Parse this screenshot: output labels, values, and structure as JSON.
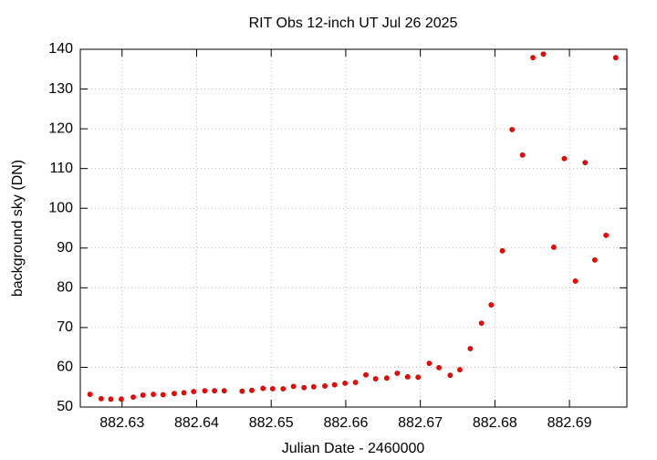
{
  "chart_data": {
    "type": "scatter",
    "title": "RIT Obs 12-inch UT Jul 26 2025",
    "x_label": "Julian Date - 2460000",
    "y_label": "background sky (DN)",
    "color": "#ff0000",
    "grid": true,
    "xlim": [
      882.6244,
      882.6977
    ],
    "ylim": [
      50,
      140
    ],
    "xticks": [
      882.63,
      882.64,
      882.65,
      882.66,
      882.67,
      882.68,
      882.69
    ],
    "yticks": [
      50,
      60,
      70,
      80,
      90,
      100,
      110,
      120,
      130,
      140
    ],
    "x": [
      882.6257,
      882.6272,
      882.6285,
      882.6299,
      882.6315,
      882.6328,
      882.6342,
      882.6355,
      882.637,
      882.6383,
      882.6396,
      882.6411,
      882.6424,
      882.6437,
      882.6461,
      882.6474,
      882.6489,
      882.6502,
      882.6516,
      882.653,
      882.6544,
      882.6557,
      882.6572,
      882.6585,
      882.6599,
      882.6613,
      882.6627,
      882.664,
      882.6655,
      882.6669,
      882.6683,
      882.6697,
      882.6712,
      882.6725,
      882.674,
      882.6753,
      882.6767,
      882.6782,
      882.6795,
      882.681,
      882.6823,
      882.6837,
      882.6851,
      882.6865,
      882.6879,
      882.6893,
      882.6908,
      882.6921,
      882.6934,
      882.6949,
      882.6962
    ],
    "values": [
      53.2,
      52.1,
      52.0,
      52.0,
      52.5,
      53.0,
      53.2,
      53.1,
      53.4,
      53.6,
      53.9,
      54.1,
      54.1,
      54.1,
      54.0,
      54.2,
      54.7,
      54.6,
      54.6,
      55.2,
      54.9,
      55.1,
      55.3,
      55.6,
      56.0,
      56.2,
      58.1,
      57.1,
      57.3,
      58.5,
      57.6,
      57.5,
      61.0,
      59.9,
      58.0,
      59.4,
      64.7,
      71.1,
      75.7,
      89.3,
      119.8,
      113.4,
      137.9,
      138.8,
      90.2,
      112.5,
      81.7,
      111.5,
      87.0,
      93.2,
      137.9
    ]
  }
}
